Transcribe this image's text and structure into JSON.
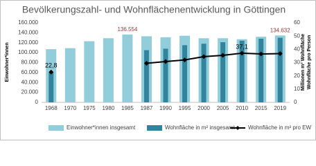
{
  "chart_data": {
    "type": "bar",
    "title": "Bevölkerungszahl- und Wohnflächenentwicklung in Göttingen",
    "categories": [
      "1968",
      "1970",
      "1975",
      "1980",
      "1985",
      "1987",
      "1990",
      "1995",
      "2000",
      "2005",
      "2010",
      "2015",
      "2019"
    ],
    "ylabel": "Einwohner*innen",
    "y2label": [
      "Millionen m² Wohnfläche",
      "Wohnfläche pro Person"
    ],
    "ylim": [
      0,
      160000
    ],
    "yticks": [
      {
        "value": 0,
        "label": "0"
      },
      {
        "value": 20000,
        "label": "20.000"
      },
      {
        "value": 40000,
        "label": "40.000"
      },
      {
        "value": 60000,
        "label": "60.000"
      },
      {
        "value": 80000,
        "label": "80.000"
      },
      {
        "value": 100000,
        "label": "100.000"
      },
      {
        "value": 120000,
        "label": "120.000"
      },
      {
        "value": 140000,
        "label": "140.000"
      },
      {
        "value": 160000,
        "label": "160.000"
      }
    ],
    "y2lim": [
      0,
      60
    ],
    "y2ticks": [
      0,
      10,
      20,
      30,
      40,
      50,
      60
    ],
    "series": [
      {
        "name": "Einwohner*innen insgesamt",
        "color": "#92cddc",
        "kind": "bar",
        "values": [
          107000,
          109000,
          123000,
          129000,
          136554,
          133000,
          131000,
          134000,
          129000,
          129000,
          127000,
          132000,
          134632
        ],
        "value_labels": [
          null,
          null,
          null,
          null,
          "136.554",
          null,
          null,
          null,
          null,
          null,
          null,
          null,
          "134.632"
        ]
      },
      {
        "name": "Wohnfläche in m² insgesamt",
        "color": "#31849b",
        "kind": "bar",
        "values": [
          60000,
          null,
          null,
          null,
          null,
          105000,
          108000,
          115000,
          118000,
          121000,
          124000,
          128000,
          130000
        ]
      },
      {
        "name": "Wohnfläche in m² pro EW",
        "color": "#000000",
        "kind": "line",
        "axis": "y2",
        "values": [
          22.8,
          null,
          null,
          null,
          null,
          29.5,
          30.8,
          32,
          34.5,
          35.5,
          37.1,
          36.5,
          36.8
        ],
        "value_labels": [
          "22,8",
          null,
          null,
          null,
          null,
          null,
          null,
          null,
          null,
          null,
          "37,1",
          null,
          null
        ]
      }
    ]
  }
}
